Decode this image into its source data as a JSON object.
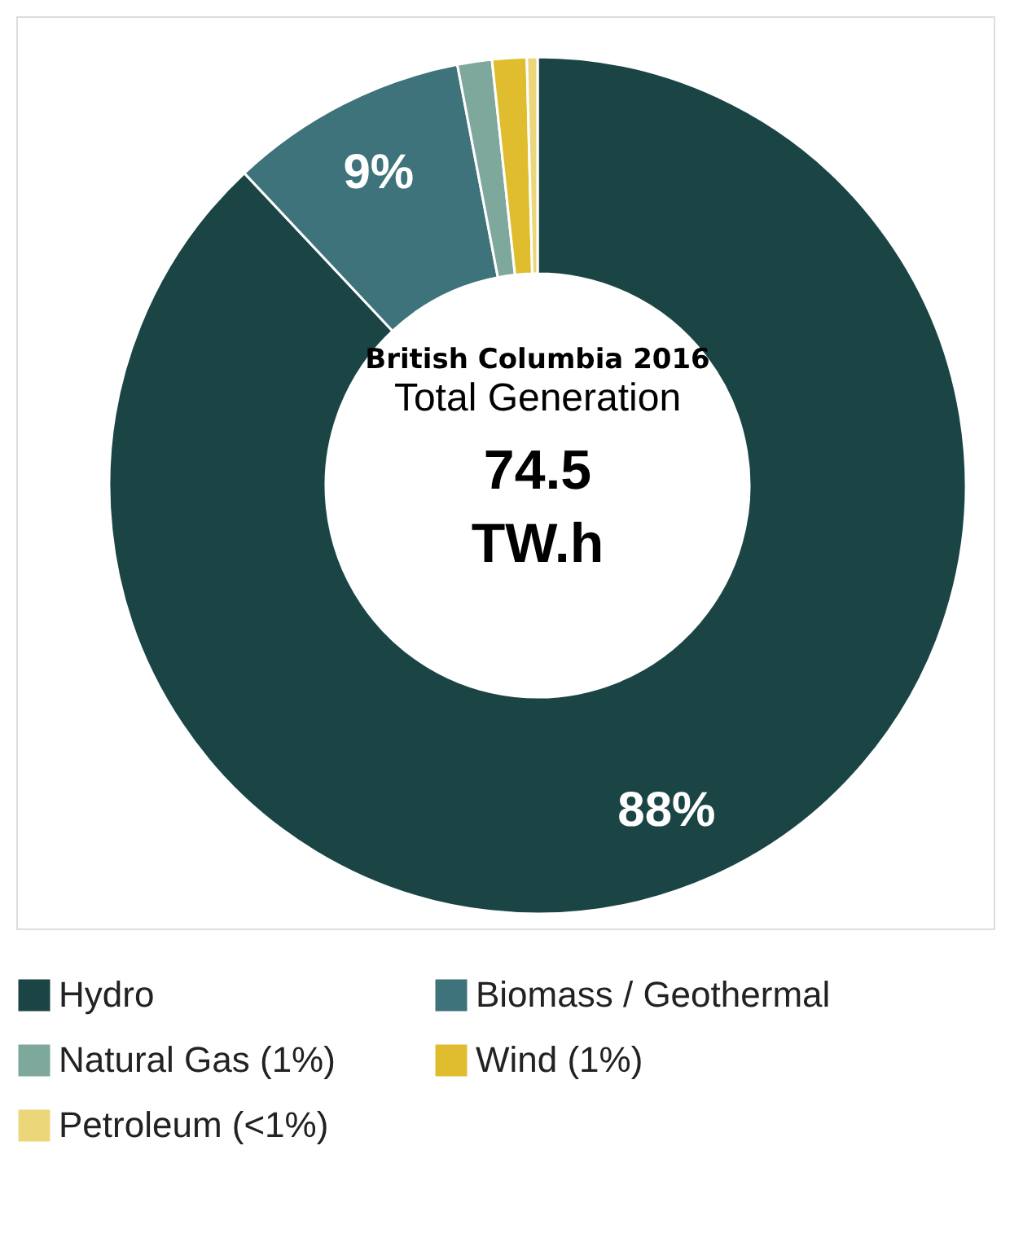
{
  "chart_data": {
    "type": "donut",
    "title": "British Columbia 2016",
    "subtitle": "Total Generation",
    "annotations": [
      "74.5",
      "TW.h"
    ],
    "categories": [
      "Hydro",
      "Biomass / Geothermal",
      "Natural Gas (1%)",
      "Wind (1%)",
      "Petroleum (<1%)"
    ],
    "values": [
      88,
      9,
      1.3,
      1.3,
      0.4
    ],
    "colors": [
      "#1b4545",
      "#3f737b",
      "#7fa89c",
      "#e0bd2e",
      "#ecd67a"
    ],
    "value_labels": [
      "88%",
      "9%",
      null,
      null,
      null
    ],
    "legend": "bottom"
  }
}
